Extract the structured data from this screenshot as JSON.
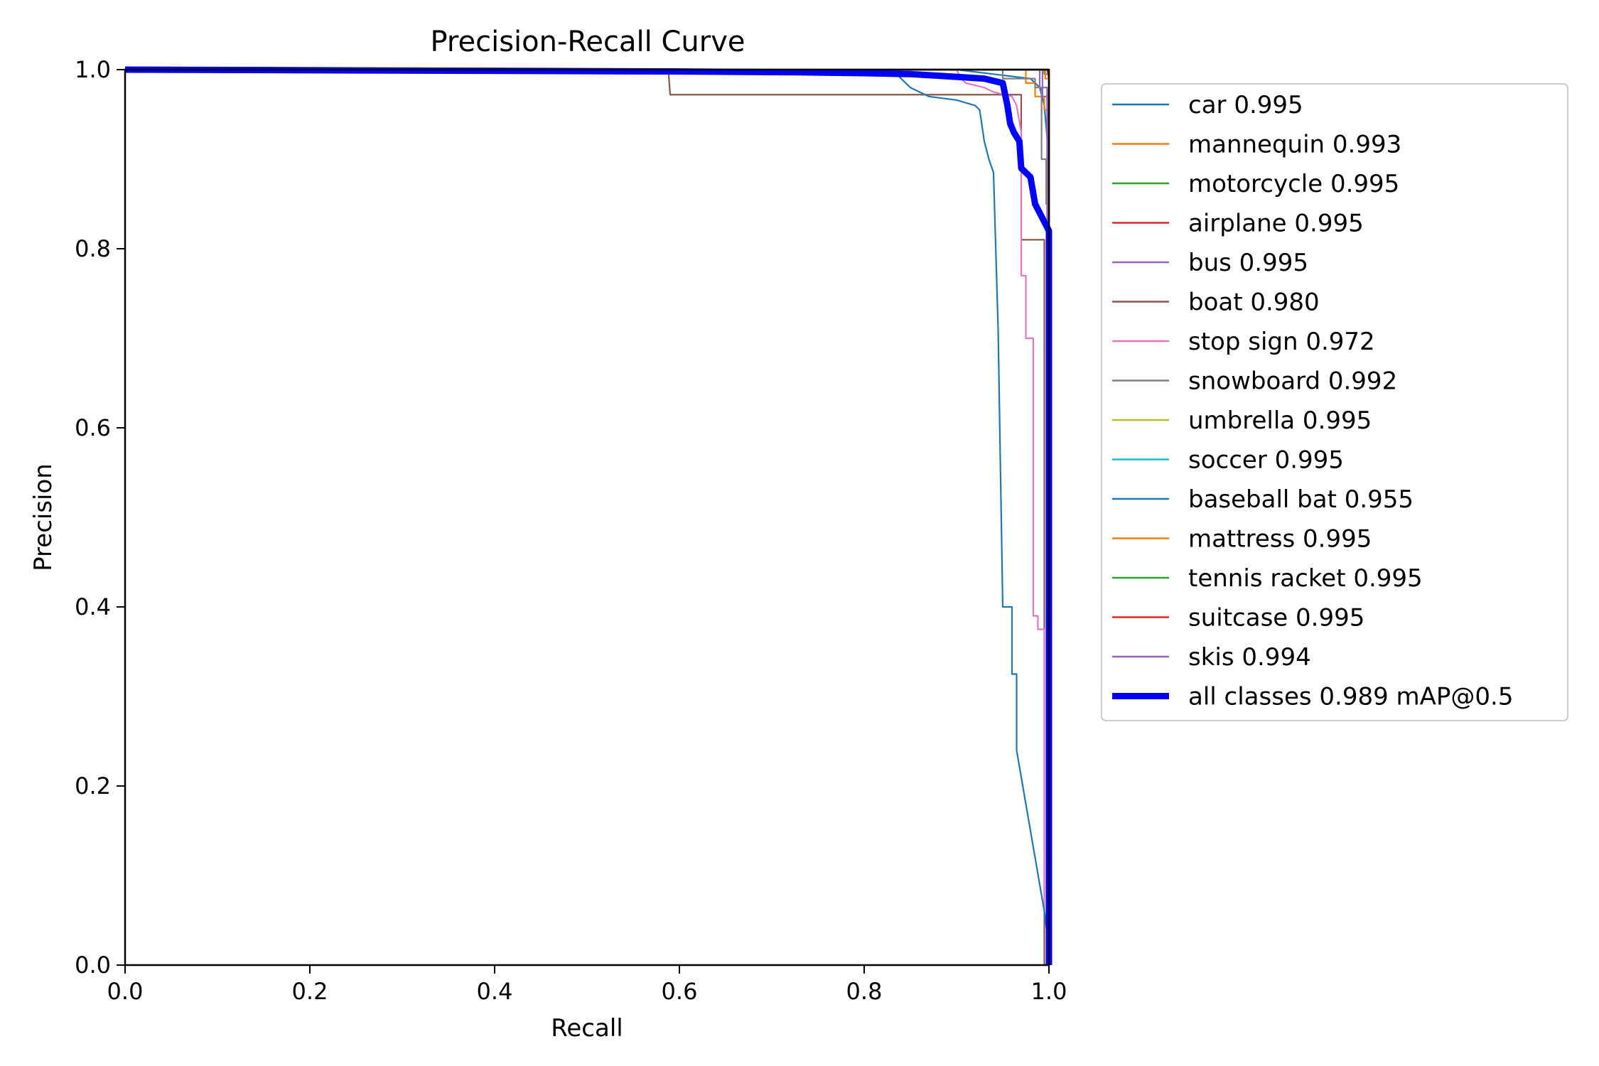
{
  "chart_data": {
    "type": "line",
    "title": "Precision-Recall Curve",
    "xlabel": "Recall",
    "ylabel": "Precision",
    "xlim": [
      0,
      1
    ],
    "ylim": [
      0,
      1
    ],
    "xticks": [
      "0.0",
      "0.2",
      "0.4",
      "0.6",
      "0.8",
      "1.0"
    ],
    "yticks": [
      "0.0",
      "0.2",
      "0.4",
      "0.6",
      "0.8",
      "1.0"
    ],
    "grid": false,
    "legend_position": "outside-right",
    "series": [
      {
        "name": "car",
        "label": "car 0.995",
        "color": "#1f77b4",
        "points": [
          [
            0,
            1
          ],
          [
            0.9,
            1
          ],
          [
            0.98,
            0.99
          ],
          [
            0.99,
            0.98
          ],
          [
            0.995,
            0.96
          ],
          [
            1,
            0.9
          ],
          [
            1,
            0
          ]
        ]
      },
      {
        "name": "mannequin",
        "label": "mannequin 0.993",
        "color": "#ff7f0e",
        "points": [
          [
            0,
            1
          ],
          [
            0.975,
            1
          ],
          [
            0.975,
            0.985
          ],
          [
            0.985,
            0.985
          ],
          [
            0.985,
            0.97
          ],
          [
            0.995,
            0.97
          ],
          [
            0.995,
            0.955
          ],
          [
            1,
            0.955
          ],
          [
            1,
            0
          ]
        ]
      },
      {
        "name": "motorcycle",
        "label": "motorcycle 0.995",
        "color": "#2ca02c",
        "points": [
          [
            0,
            1
          ],
          [
            0.995,
            1
          ],
          [
            0.995,
            0.995
          ],
          [
            1,
            0.995
          ],
          [
            1,
            0
          ]
        ]
      },
      {
        "name": "airplane",
        "label": "airplane 0.995",
        "color": "#d62728",
        "points": [
          [
            0,
            1
          ],
          [
            0.998,
            1
          ],
          [
            1,
            0.99
          ],
          [
            1,
            0
          ]
        ]
      },
      {
        "name": "bus",
        "label": "bus 0.995",
        "color": "#9467bd",
        "points": [
          [
            0,
            1
          ],
          [
            0.99,
            1
          ],
          [
            0.99,
            0.98
          ],
          [
            0.998,
            0.98
          ],
          [
            0.998,
            0.78
          ],
          [
            1,
            0.78
          ],
          [
            1,
            0
          ]
        ]
      },
      {
        "name": "boat",
        "label": "boat 0.980",
        "color": "#8c564b",
        "points": [
          [
            0,
            1
          ],
          [
            0.588,
            1
          ],
          [
            0.59,
            0.972
          ],
          [
            0.97,
            0.972
          ],
          [
            0.97,
            0.81
          ],
          [
            0.995,
            0.81
          ],
          [
            0.995,
            0.0
          ],
          [
            1,
            0.0
          ]
        ]
      },
      {
        "name": "stop sign",
        "label": "stop sign 0.972",
        "color": "#e377c2",
        "points": [
          [
            0,
            1
          ],
          [
            0.9,
            1
          ],
          [
            0.905,
            0.99
          ],
          [
            0.91,
            0.985
          ],
          [
            0.93,
            0.98
          ],
          [
            0.94,
            0.975
          ],
          [
            0.96,
            0.97
          ],
          [
            0.965,
            0.96
          ],
          [
            0.97,
            0.93
          ],
          [
            0.97,
            0.77
          ],
          [
            0.975,
            0.77
          ],
          [
            0.975,
            0.7
          ],
          [
            0.983,
            0.7
          ],
          [
            0.983,
            0.39
          ],
          [
            0.988,
            0.39
          ],
          [
            0.988,
            0.375
          ],
          [
            0.995,
            0.375
          ],
          [
            0.995,
            0.06
          ],
          [
            1,
            0.02
          ],
          [
            1,
            0
          ]
        ]
      },
      {
        "name": "snowboard",
        "label": "snowboard 0.992",
        "color": "#7f7f7f",
        "points": [
          [
            0,
            1
          ],
          [
            0.95,
            1
          ],
          [
            0.95,
            0.99
          ],
          [
            0.985,
            0.99
          ],
          [
            0.985,
            0.98
          ],
          [
            0.992,
            0.98
          ],
          [
            0.992,
            0.9
          ],
          [
            0.997,
            0.9
          ],
          [
            0.997,
            0.85
          ],
          [
            1,
            0.85
          ],
          [
            1,
            0
          ]
        ]
      },
      {
        "name": "umbrella",
        "label": "umbrella 0.995",
        "color": "#bcbd22",
        "points": [
          [
            0,
            1
          ],
          [
            1,
            1
          ],
          [
            1,
            0
          ]
        ]
      },
      {
        "name": "soccer",
        "label": "soccer 0.995",
        "color": "#17becf",
        "points": [
          [
            0,
            1
          ],
          [
            1,
            1
          ],
          [
            1,
            0
          ]
        ]
      },
      {
        "name": "baseball bat",
        "label": "baseball bat 0.955",
        "color": "#1f77b4",
        "points": [
          [
            0,
            1
          ],
          [
            0.83,
            1
          ],
          [
            0.84,
            0.99
          ],
          [
            0.85,
            0.98
          ],
          [
            0.87,
            0.97
          ],
          [
            0.9,
            0.966
          ],
          [
            0.92,
            0.96
          ],
          [
            0.925,
            0.955
          ],
          [
            0.93,
            0.92
          ],
          [
            0.935,
            0.9
          ],
          [
            0.94,
            0.885
          ],
          [
            0.945,
            0.71
          ],
          [
            0.95,
            0.4
          ],
          [
            0.96,
            0.4
          ],
          [
            0.96,
            0.325
          ],
          [
            0.965,
            0.325
          ],
          [
            0.965,
            0.24
          ],
          [
            0.975,
            0.18
          ],
          [
            0.985,
            0.12
          ],
          [
            0.995,
            0.06
          ],
          [
            1,
            0.02
          ],
          [
            1,
            0
          ]
        ]
      },
      {
        "name": "mattress",
        "label": "mattress 0.995",
        "color": "#ff7f0e",
        "points": [
          [
            0,
            1
          ],
          [
            0.996,
            1
          ],
          [
            0.996,
            0.99
          ],
          [
            1,
            0.99
          ],
          [
            1,
            0
          ]
        ]
      },
      {
        "name": "tennis racket",
        "label": "tennis racket 0.995",
        "color": "#2ca02c",
        "points": [
          [
            0,
            1
          ],
          [
            1,
            1
          ],
          [
            1,
            0
          ]
        ]
      },
      {
        "name": "suitcase",
        "label": "suitcase 0.995",
        "color": "#d62728",
        "points": [
          [
            0,
            1
          ],
          [
            0.999,
            1
          ],
          [
            1,
            0.995
          ],
          [
            1,
            0
          ]
        ]
      },
      {
        "name": "skis",
        "label": "skis 0.994",
        "color": "#9467bd",
        "points": [
          [
            0,
            1
          ],
          [
            0.993,
            1
          ],
          [
            0.993,
            0.97
          ],
          [
            0.998,
            0.97
          ],
          [
            1,
            0.86
          ],
          [
            1,
            0
          ]
        ]
      },
      {
        "name": "all classes",
        "label": "all classes 0.989 mAP@0.5",
        "color": "#0000ff",
        "bold": true,
        "points": [
          [
            0,
            1
          ],
          [
            0.59,
            0.998
          ],
          [
            0.73,
            0.997
          ],
          [
            0.8,
            0.996
          ],
          [
            0.85,
            0.995
          ],
          [
            0.9,
            0.992
          ],
          [
            0.93,
            0.99
          ],
          [
            0.95,
            0.985
          ],
          [
            0.955,
            0.96
          ],
          [
            0.958,
            0.94
          ],
          [
            0.962,
            0.93
          ],
          [
            0.968,
            0.92
          ],
          [
            0.97,
            0.89
          ],
          [
            0.98,
            0.88
          ],
          [
            0.985,
            0.85
          ],
          [
            0.99,
            0.84
          ],
          [
            0.995,
            0.83
          ],
          [
            1,
            0.82
          ],
          [
            1,
            0
          ]
        ]
      }
    ]
  }
}
